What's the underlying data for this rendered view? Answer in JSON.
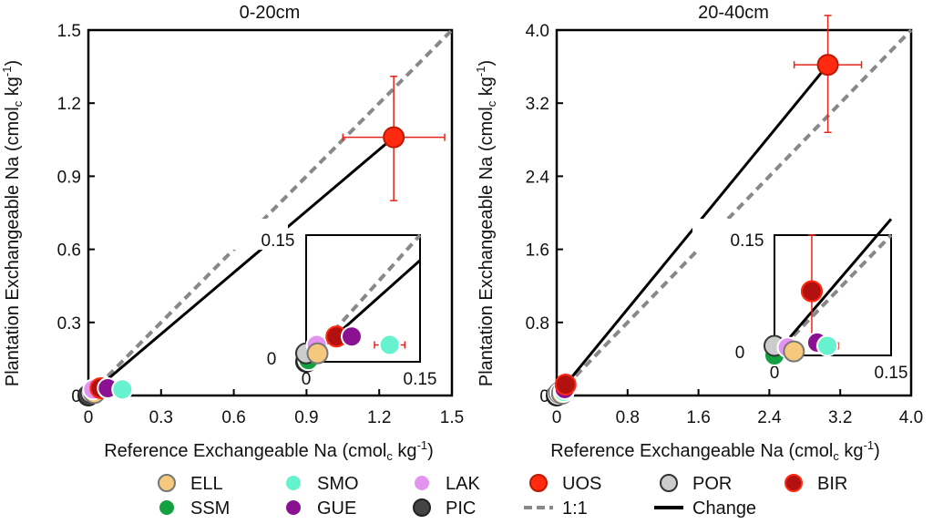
{
  "chart_data": [
    {
      "type": "scatter",
      "title": "0-20cm",
      "xlabel": "Reference Exchangeable Na (cmol",
      "ylabel": "Plantation Exchangeable Na (cmol",
      "unit_sub": "c",
      "unit_tail": " kg",
      "unit_sup": "-1",
      "unit_close": ")",
      "xlim": [
        0,
        1.5
      ],
      "ylim": [
        0,
        1.5
      ],
      "xticks": [
        0,
        0.3,
        0.6,
        0.9,
        1.2,
        1.5
      ],
      "xtick_labels": [
        "0",
        "0.3",
        "0.6",
        "0.9",
        "1.2",
        "1.5"
      ],
      "yticks": [
        0,
        0.3,
        0.6,
        0.9,
        1.2,
        1.5
      ],
      "ytick_labels": [
        "0",
        "0.3",
        "0.6",
        "0.9",
        "1.2",
        "1.5"
      ],
      "one_to_one": [
        [
          0,
          0
        ],
        [
          1.5,
          1.5
        ]
      ],
      "change_line": [
        [
          0,
          0
        ],
        [
          1.26,
          1.06
        ]
      ],
      "points": [
        {
          "site": "PIC",
          "x": 0.0,
          "y": 0.0
        },
        {
          "site": "SSM",
          "x": 0.01,
          "y": 0.01
        },
        {
          "site": "POR",
          "x": 0.01,
          "y": 0.01
        },
        {
          "site": "ELL",
          "x": 0.025,
          "y": 0.01
        },
        {
          "site": "LAK",
          "x": 0.02,
          "y": 0.025
        },
        {
          "site": "BIR",
          "x": 0.05,
          "y": 0.03
        },
        {
          "site": "GUE",
          "x": 0.08,
          "y": 0.03
        },
        {
          "site": "SMO",
          "x": 0.14,
          "y": 0.025
        },
        {
          "site": "UOS",
          "x": 1.26,
          "y": 1.06,
          "xerr": [
            0.21,
            0.21
          ],
          "yerr": [
            0.26,
            0.25
          ]
        }
      ],
      "inset": {
        "xlim": [
          0,
          0.15
        ],
        "ylim": [
          0,
          0.15
        ],
        "corner_label": "0.15",
        "x0_label": "0",
        "x_end_label": "0.15",
        "y0_label": "0",
        "one_to_one": [
          [
            0,
            0
          ],
          [
            0.15,
            0.15
          ]
        ],
        "change_line": [
          [
            0,
            0
          ],
          [
            0.15,
            0.12
          ]
        ],
        "points": [
          {
            "site": "PIC",
            "x": 0.0,
            "y": 0.0
          },
          {
            "site": "SSM",
            "x": 0.003,
            "y": 0.002
          },
          {
            "site": "POR",
            "x": 0.0,
            "y": 0.01
          },
          {
            "site": "LAK",
            "x": 0.014,
            "y": 0.02
          },
          {
            "site": "ELL",
            "x": 0.015,
            "y": 0.01
          },
          {
            "site": "UOS",
            "x": 0.04,
            "y": 0.03
          },
          {
            "site": "BIR",
            "x": 0.04,
            "y": 0.03,
            "xerr": [
              0.007,
              0.007
            ],
            "yerr": [
              0.007,
              0.007
            ]
          },
          {
            "site": "GUE",
            "x": 0.06,
            "y": 0.03
          },
          {
            "site": "SMO",
            "x": 0.11,
            "y": 0.02,
            "xerr": [
              0.02,
              0.02
            ],
            "yerr": [
              0.005,
              0.005
            ]
          }
        ]
      }
    },
    {
      "type": "scatter",
      "title": "20-40cm",
      "xlabel": "Reference Exchangeable Na (cmol",
      "ylabel": "Plantation Exchangeable Na (cmol",
      "unit_sub": "c",
      "unit_tail": " kg",
      "unit_sup": "-1",
      "unit_close": ")",
      "xlim": [
        0,
        4.0
      ],
      "ylim": [
        0,
        4.0
      ],
      "xticks": [
        0,
        0.8,
        1.6,
        2.4,
        3.2,
        4.0
      ],
      "xtick_labels": [
        "0",
        "0.8",
        "1.6",
        "2.4",
        "3.2",
        "4.0"
      ],
      "yticks": [
        0,
        0.8,
        1.6,
        2.4,
        3.2,
        4.0
      ],
      "ytick_labels": [
        "0",
        "0.8",
        "1.6",
        "2.4",
        "3.2",
        "4.0"
      ],
      "one_to_one": [
        [
          0,
          0
        ],
        [
          4.0,
          4.0
        ]
      ],
      "change_line": [
        [
          0,
          0
        ],
        [
          3.06,
          3.62
        ]
      ],
      "points": [
        {
          "site": "PIC",
          "x": 0.0,
          "y": 0.0
        },
        {
          "site": "SSM",
          "x": 0.02,
          "y": 0.02
        },
        {
          "site": "POR",
          "x": 0.03,
          "y": 0.03
        },
        {
          "site": "LAK",
          "x": 0.04,
          "y": 0.03
        },
        {
          "site": "ELL",
          "x": 0.06,
          "y": 0.02
        },
        {
          "site": "SMO",
          "x": 0.08,
          "y": 0.04
        },
        {
          "site": "GUE",
          "x": 0.09,
          "y": 0.07
        },
        {
          "site": "BIR",
          "x": 0.1,
          "y": 0.12
        },
        {
          "site": "UOS",
          "x": 3.06,
          "y": 3.62,
          "xerr": [
            0.38,
            0.38
          ],
          "yerr": [
            0.74,
            0.54
          ]
        }
      ],
      "inset": {
        "xlim": [
          0,
          0.15
        ],
        "ylim": [
          0,
          0.15
        ],
        "corner_label": "0.15",
        "x0_label": "0",
        "x_end_label": "0.15",
        "y0_label": "0",
        "one_to_one": [
          [
            0,
            0
          ],
          [
            0.15,
            0.15
          ]
        ],
        "change_line": [
          [
            0,
            0
          ],
          [
            0.15,
            0.17
          ]
        ],
        "points": [
          {
            "site": "SSM",
            "x": 0.0,
            "y": 0.0
          },
          {
            "site": "POR",
            "x": 0.0,
            "y": 0.012
          },
          {
            "site": "LAK",
            "x": 0.017,
            "y": 0.01
          },
          {
            "site": "ELL",
            "x": 0.025,
            "y": 0.005
          },
          {
            "site": "UOS",
            "x": 0.048,
            "y": 0.08
          },
          {
            "site": "BIR",
            "x": 0.048,
            "y": 0.08,
            "xerr": [
              0.012,
              0.012
            ],
            "yerr": [
              0.07,
              0.07
            ]
          },
          {
            "site": "GUE",
            "x": 0.055,
            "y": 0.016
          },
          {
            "site": "SMO",
            "x": 0.068,
            "y": 0.012,
            "xerr": [
              0.014,
              0.014
            ],
            "yerr": [
              0.006,
              0.006
            ]
          }
        ]
      }
    }
  ],
  "legend": {
    "items": [
      {
        "key": "ELL",
        "label": "ELL",
        "kind": "marker"
      },
      {
        "key": "SMO",
        "label": "SMO",
        "kind": "marker"
      },
      {
        "key": "LAK",
        "label": "LAK",
        "kind": "marker"
      },
      {
        "key": "UOS",
        "label": "UOS",
        "kind": "marker"
      },
      {
        "key": "POR",
        "label": "POR",
        "kind": "marker"
      },
      {
        "key": "BIR",
        "label": "BIR",
        "kind": "marker"
      },
      {
        "key": "SSM",
        "label": "SSM",
        "kind": "marker"
      },
      {
        "key": "GUE",
        "label": "GUE",
        "kind": "marker"
      },
      {
        "key": "PIC",
        "label": "PIC",
        "kind": "marker"
      },
      {
        "key": "one_to_one",
        "label": "1:1",
        "kind": "dashed"
      },
      {
        "key": "change",
        "label": "Change",
        "kind": "solid"
      }
    ]
  },
  "colors": {
    "ELL": {
      "fill": "#f6c87e",
      "stroke": "#777777"
    },
    "SMO": {
      "fill": "#66f2cf",
      "stroke": "#ffffff"
    },
    "LAK": {
      "fill": "#e494f0",
      "stroke": "#ffffff"
    },
    "UOS": {
      "fill": "#ff2a10",
      "stroke": "#c01800"
    },
    "POR": {
      "fill": "#cccccc",
      "stroke": "#333333"
    },
    "BIR": {
      "fill": "#b31010",
      "stroke": "#ff2a10"
    },
    "SSM": {
      "fill": "#12a040",
      "stroke": "#ffffff"
    },
    "GUE": {
      "fill": "#8a1292",
      "stroke": "#ffffff"
    },
    "PIC": {
      "fill": "#444444",
      "stroke": "#222222"
    },
    "one_to_one": "#888888",
    "change": "#000000",
    "errorbar": "#e8241a"
  }
}
